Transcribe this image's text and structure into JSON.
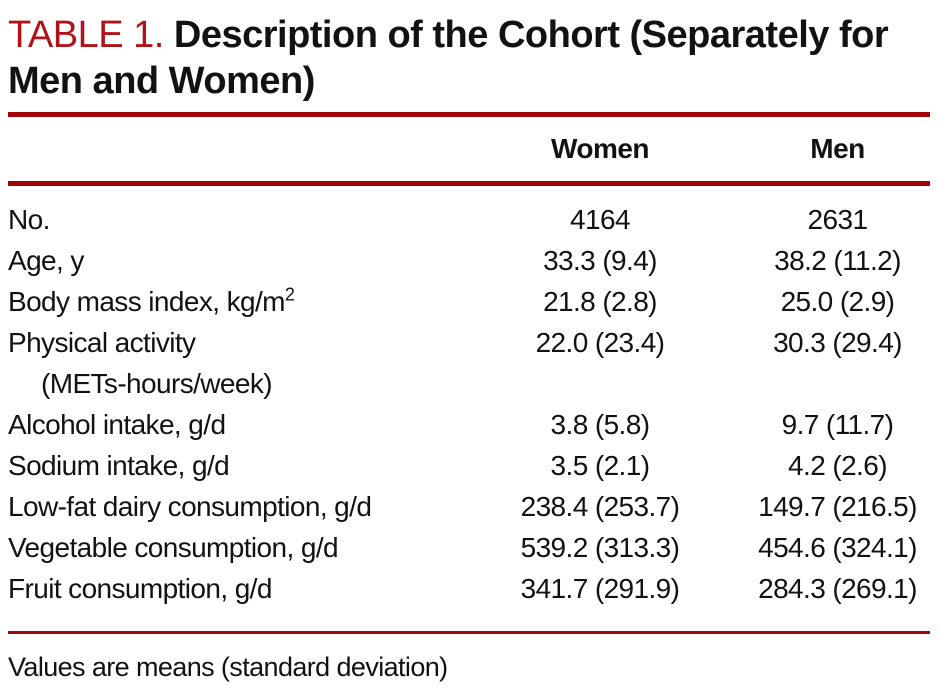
{
  "title": {
    "label": "TABLE 1.",
    "line1": "Description of the Cohort (Separately for",
    "line2": "Men and Women)"
  },
  "table": {
    "columns": [
      "Women",
      "Men"
    ],
    "rows": [
      {
        "label": "No.",
        "women": "4164",
        "men": "2631"
      },
      {
        "label": "Age, y",
        "women": "33.3 (9.4)",
        "men": "38.2 (11.2)"
      },
      {
        "label": "Body mass index, kg/m",
        "sup": "2",
        "women": "21.8 (2.8)",
        "men": "25.0 (2.9)"
      },
      {
        "label": "Physical activity",
        "label2": "(METs-hours/week)",
        "women": "22.0 (23.4)",
        "men": "30.3 (29.4)"
      },
      {
        "label": "Alcohol intake, g/d",
        "women": "3.8 (5.8)",
        "men": "9.7 (11.7)"
      },
      {
        "label": "Sodium intake, g/d",
        "women": "3.5 (2.1)",
        "men": "4.2 (2.6)"
      },
      {
        "label": "Low-fat dairy consumption, g/d",
        "women": "238.4 (253.7)",
        "men": "149.7 (216.5)"
      },
      {
        "label": "Vegetable consumption, g/d",
        "women": "539.2 (313.3)",
        "men": "454.6 (324.1)"
      },
      {
        "label": "Fruit consumption, g/d",
        "women": "341.7 (291.9)",
        "men": "284.3 (269.1)"
      }
    ],
    "footnote": "Values are means (standard deviation)"
  },
  "colors": {
    "accent_red": "#a20509",
    "title_red": "#b2131b",
    "text": "#121212",
    "background": "#ffffff"
  }
}
